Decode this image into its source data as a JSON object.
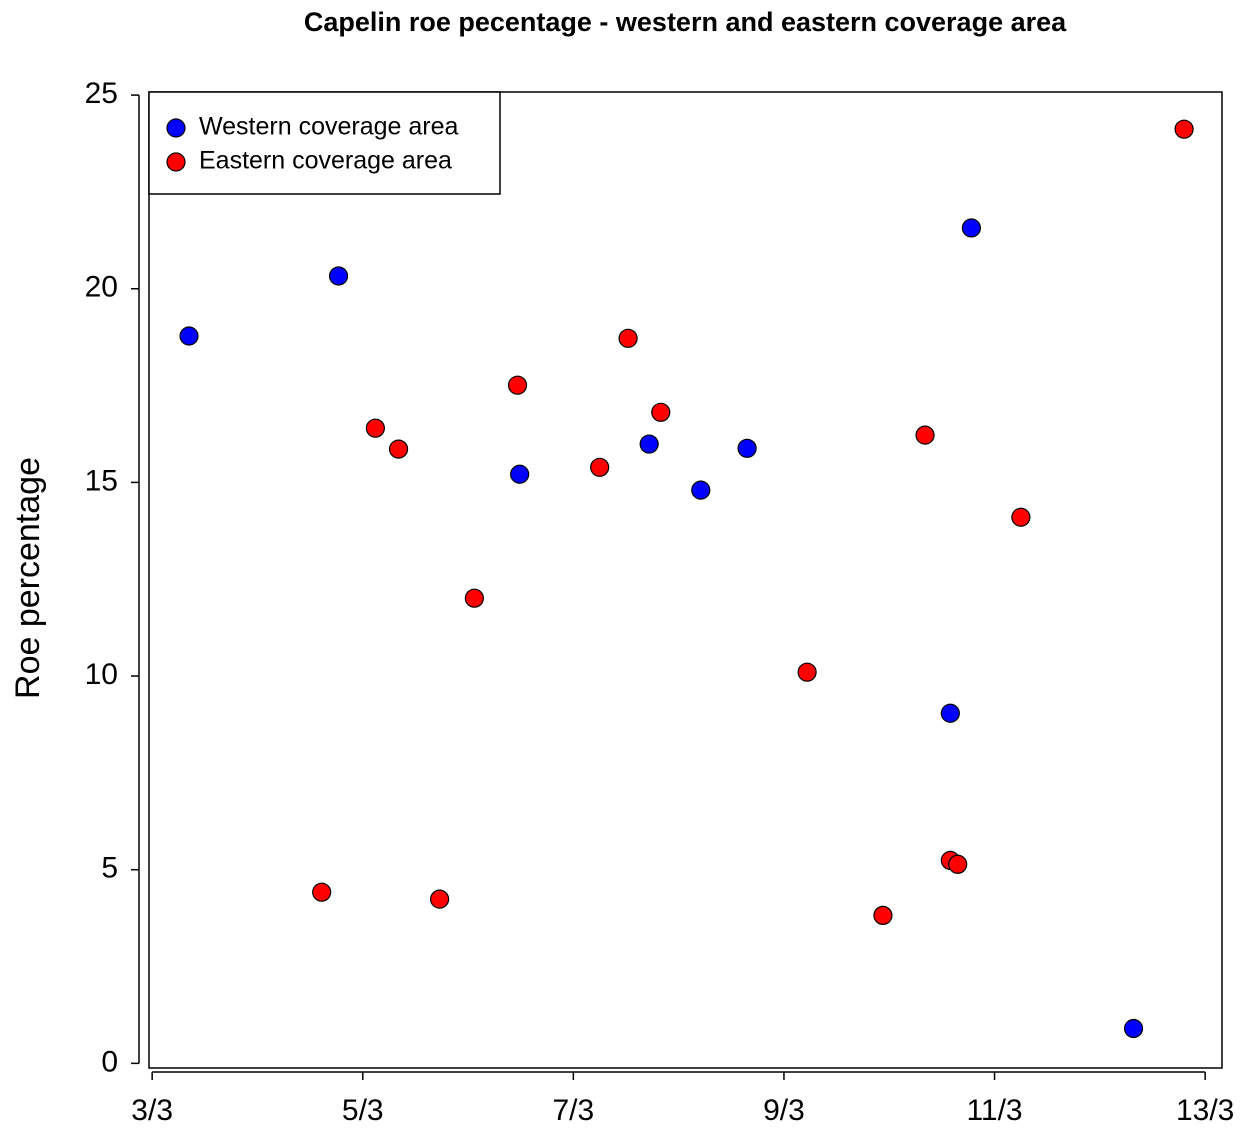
{
  "chart_data": {
    "type": "scatter",
    "title": "Capelin roe pecentage - western and eastern coverage area",
    "y_label": "Roe percentage",
    "xlim": [
      2.97,
      13.16
    ],
    "ylim": [
      -0.12,
      25.08
    ],
    "xticks": [
      {
        "value": 3,
        "label": "3/3"
      },
      {
        "value": 5,
        "label": "5/3"
      },
      {
        "value": 7,
        "label": "7/3"
      },
      {
        "value": 9,
        "label": "9/3"
      },
      {
        "value": 11,
        "label": "11/3"
      },
      {
        "value": 13,
        "label": "13/3"
      }
    ],
    "yticks": [
      0,
      5,
      10,
      15,
      20,
      25
    ],
    "legend": "top-left",
    "series": [
      {
        "name": "Western coverage area",
        "color": "#0000ff",
        "x": [
          3.35,
          4.77,
          6.49,
          7.72,
          8.21,
          8.65,
          10.78,
          10.58,
          12.32
        ],
        "values": [
          18.78,
          20.33,
          15.21,
          15.99,
          14.8,
          15.88,
          21.57,
          9.04,
          0.9
        ]
      },
      {
        "name": "Eastern coverage area",
        "color": "#ff0000",
        "x": [
          4.61,
          5.12,
          5.34,
          5.73,
          6.06,
          6.47,
          7.25,
          7.52,
          7.83,
          9.22,
          9.94,
          10.34,
          10.58,
          10.65,
          11.25,
          12.8
        ],
        "values": [
          4.42,
          16.4,
          15.86,
          4.24,
          12.01,
          17.51,
          15.39,
          18.72,
          16.81,
          10.1,
          3.82,
          16.22,
          5.24,
          5.14,
          14.1,
          24.12
        ]
      }
    ]
  }
}
